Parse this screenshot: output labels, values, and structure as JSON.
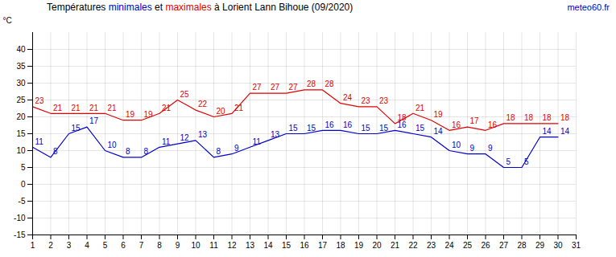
{
  "chart_data": {
    "type": "line",
    "title": "Températures minimales et maximales à Lorient Lann Bihoue (09/2020)",
    "caption": "meteo60.fr",
    "y_label": "°C",
    "x": [
      1,
      2,
      3,
      4,
      5,
      6,
      7,
      8,
      9,
      10,
      11,
      12,
      13,
      14,
      15,
      16,
      17,
      18,
      19,
      20,
      21,
      22,
      23,
      24,
      25,
      26,
      27,
      28,
      29,
      30
    ],
    "series": [
      {
        "name": "minimales",
        "color": "#0000cc",
        "values": [
          11,
          8,
          15,
          17,
          10,
          8,
          8,
          11,
          12,
          13,
          8,
          9,
          11,
          13,
          15,
          15,
          16,
          16,
          15,
          15,
          16,
          15,
          14,
          10,
          9,
          9,
          5,
          5,
          14,
          14
        ]
      },
      {
        "name": "maximales",
        "color": "#e00000",
        "values": [
          23,
          21,
          21,
          21,
          21,
          19,
          19,
          21,
          25,
          22,
          20,
          21,
          27,
          27,
          27,
          28,
          28,
          24,
          23,
          23,
          18,
          21,
          19,
          16,
          17,
          16,
          18,
          18,
          18,
          18
        ]
      }
    ],
    "xlim": [
      1,
      31
    ],
    "xticks": [
      1,
      2,
      3,
      4,
      5,
      6,
      7,
      8,
      9,
      10,
      11,
      12,
      13,
      14,
      15,
      16,
      17,
      18,
      19,
      20,
      21,
      22,
      23,
      24,
      25,
      26,
      27,
      28,
      29,
      30,
      31
    ],
    "ylim": [
      -15,
      45
    ],
    "yticks": [
      -15,
      -10,
      -5,
      0,
      5,
      10,
      15,
      20,
      25,
      30,
      35,
      40
    ],
    "grid": true,
    "data_labels": true
  }
}
